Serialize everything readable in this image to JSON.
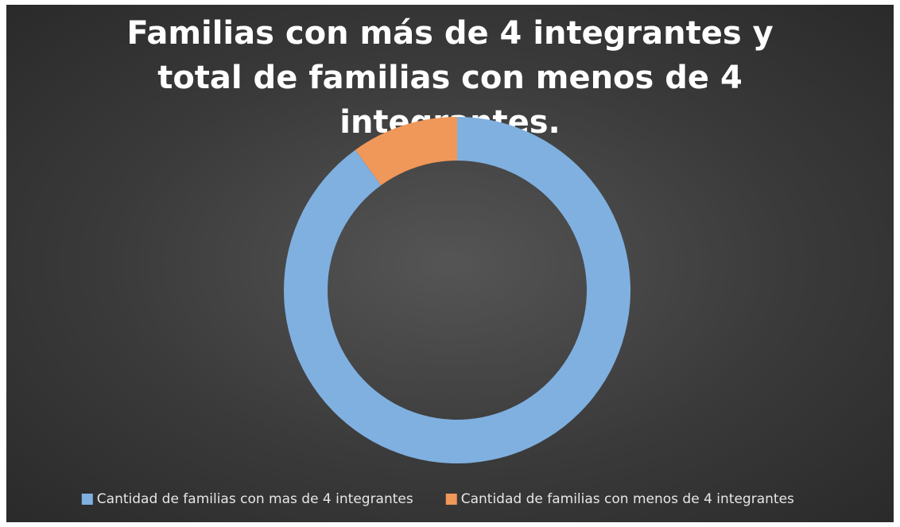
{
  "chart_data": {
    "type": "donut",
    "title": "Familias con más de 4 integrantes y total de familias con menos de 4 integrantes.",
    "categories": [
      "Cantidad de familias con mas de 4 integrantes",
      "Cantidad de familias con menos de 4 integrantes"
    ],
    "values": [
      90,
      10
    ],
    "colors": [
      "#7fb0e0",
      "#f0975a"
    ],
    "legend": "bottom"
  }
}
